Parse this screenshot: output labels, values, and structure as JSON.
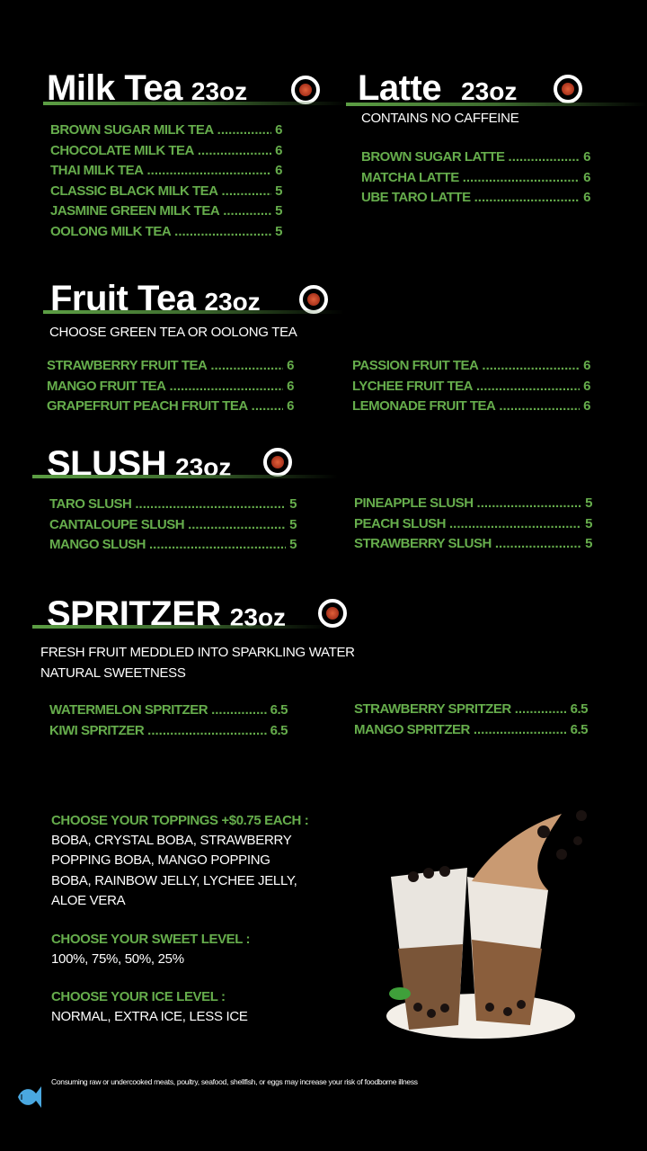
{
  "milk_tea": {
    "title": "Milk Tea",
    "size": "23oz",
    "items": [
      {
        "name": "BROWN SUGAR MILK TEA",
        "price": "6"
      },
      {
        "name": "CHOCOLATE MILK TEA",
        "price": "6"
      },
      {
        "name": "THAI MILK TEA",
        "price": "6"
      },
      {
        "name": "CLASSIC BLACK MILK TEA",
        "price": "5"
      },
      {
        "name": "JASMINE GREEN MILK TEA",
        "price": "5"
      },
      {
        "name": "OOLONG MILK TEA",
        "price": "5"
      }
    ]
  },
  "latte": {
    "title": "Latte",
    "size": "23oz",
    "note": "CONTAINS NO CAFFEINE",
    "items": [
      {
        "name": "BROWN SUGAR LATTE",
        "price": "6"
      },
      {
        "name": "MATCHA LATTE",
        "price": "6"
      },
      {
        "name": "UBE TARO LATTE",
        "price": "6"
      }
    ]
  },
  "fruit_tea": {
    "title": "Fruit Tea",
    "size": "23oz",
    "note": "CHOOSE GREEN TEA OR OOLONG TEA",
    "left": [
      {
        "name": "STRAWBERRY FRUIT TEA",
        "price": "6"
      },
      {
        "name": "MANGO FRUIT TEA",
        "price": "6"
      },
      {
        "name": "GRAPEFRUIT PEACH FRUIT TEA",
        "price": "6"
      }
    ],
    "right": [
      {
        "name": "PASSION FRUIT TEA",
        "price": "6"
      },
      {
        "name": "LYCHEE FRUIT TEA",
        "price": "6"
      },
      {
        "name": "LEMONADE FRUIT TEA",
        "price": "6"
      }
    ]
  },
  "slush": {
    "title": "SLUSH",
    "size": "23oz",
    "left": [
      {
        "name": "TARO SLUSH",
        "price": "5"
      },
      {
        "name": "CANTALOUPE SLUSH",
        "price": "5"
      },
      {
        "name": "MANGO SLUSH",
        "price": "5"
      }
    ],
    "right": [
      {
        "name": "PINEAPPLE SLUSH",
        "price": "5"
      },
      {
        "name": "PEACH SLUSH",
        "price": "5"
      },
      {
        "name": "STRAWBERRY SLUSH",
        "price": "5"
      }
    ]
  },
  "spritzer": {
    "title": "SPRITZER",
    "size": "23oz",
    "note1": "FRESH FRUIT MEDDLED INTO SPARKLING WATER",
    "note2": "NATURAL SWEETNESS",
    "left": [
      {
        "name": "WATERMELON SPRITZER",
        "price": "6.5"
      },
      {
        "name": "KIWI SPRITZER",
        "price": "6.5"
      }
    ],
    "right": [
      {
        "name": "STRAWBERRY SPRITZER",
        "price": "6.5"
      },
      {
        "name": "MANGO SPRITZER",
        "price": "6.5"
      }
    ]
  },
  "options": {
    "toppings_heading": "CHOOSE YOUR TOPPINGS +$0.75 EACH :",
    "toppings_lines": [
      "BOBA, CRYSTAL BOBA, STRAWBERRY",
      "POPPING BOBA, MANGO POPPING",
      "BOBA, RAINBOW JELLY, LYCHEE JELLY,",
      "ALOE VERA"
    ],
    "sweet_heading": "CHOOSE YOUR SWEET LEVEL :",
    "sweet_values": "100%, 75%, 50%, 25%",
    "ice_heading": "CHOOSE YOUR ICE LEVEL :",
    "ice_values": "NORMAL, EXTRA ICE, LESS ICE"
  },
  "footer": {
    "disclaimer": "Consuming raw or undercooked meats, poultry, seafood, shellfish, or eggs may increase your risk of foodborne illness",
    "icon": "fish-icon"
  },
  "colors": {
    "accent_green": "#66ad4c",
    "background": "#000000",
    "fish": "#4aa8e0"
  }
}
